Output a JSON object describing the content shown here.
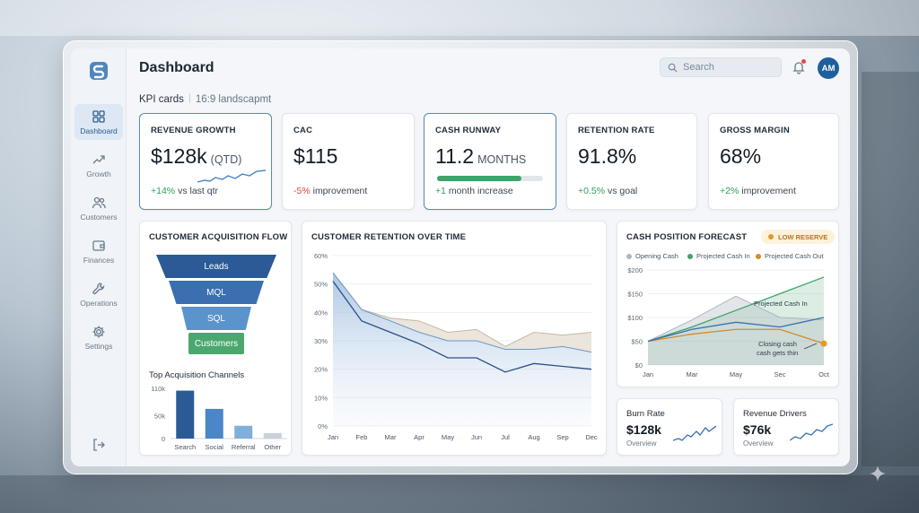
{
  "window": {
    "title": "Dashboard"
  },
  "sidebar": {
    "items": [
      {
        "label": "Dashboard",
        "icon": "grid-icon",
        "active": true
      },
      {
        "label": "Growth",
        "icon": "trend-up-icon"
      },
      {
        "label": "Customers",
        "icon": "users-icon"
      },
      {
        "label": "Finances",
        "icon": "wallet-icon"
      },
      {
        "label": "Operations",
        "icon": "wrench-icon"
      },
      {
        "label": "Settings",
        "icon": "gear-icon"
      }
    ],
    "logout_icon": "logout-icon"
  },
  "header": {
    "search_placeholder": "Search",
    "avatar_initials": "AM",
    "subtitle": "KPI cards",
    "subtitle_note": "16:9 landscapmt"
  },
  "kpis": [
    {
      "label": "REVENUE GROWTH",
      "value": "$128k",
      "unit": "(QTD)",
      "delta": "+14%",
      "delta_text": " vs last qtr",
      "tone": "pos"
    },
    {
      "label": "CAC",
      "value": "$115",
      "unit": "",
      "delta": "-5%",
      "delta_text": " improvement",
      "tone": "neg"
    },
    {
      "label": "CASH RUNWAY",
      "value": "11.2",
      "unit": "MONTHS",
      "delta": "+1",
      "delta_text": " month increase",
      "tone": "pos",
      "progress": 0.8
    },
    {
      "label": "RETENTION RATE",
      "value": "91.8%",
      "unit": "",
      "delta": "+0.5%",
      "delta_text": " vs goal",
      "tone": "pos"
    },
    {
      "label": "GROSS MARGIN",
      "value": "68%",
      "unit": "",
      "delta": "+2%",
      "delta_text": " improvement",
      "tone": "pos"
    }
  ],
  "funnel": {
    "title": "CUSTOMER ACQUISITION FLOW",
    "steps": [
      "Leads",
      "MQL",
      "SQL",
      "Customers"
    ]
  },
  "chart_data": [
    {
      "type": "bar",
      "title": "Top Acquisition Channels",
      "categories": [
        "Search",
        "Social",
        "Referral",
        "Other"
      ],
      "values": [
        105,
        65,
        28,
        12
      ],
      "y_ticks": [
        "110k",
        "50k",
        "0"
      ],
      "ylim": [
        0,
        110
      ]
    },
    {
      "type": "area",
      "title": "CUSTOMER RETENTION OVER TIME",
      "categories": [
        "Jan",
        "Feb",
        "Mar",
        "Apr",
        "May",
        "Jun",
        "Jul",
        "Aug",
        "Sep",
        "Dec"
      ],
      "y_ticks": [
        "60%",
        "50%",
        "40%",
        "30%",
        "20%",
        "10%",
        "0%"
      ],
      "ylim": [
        0,
        60
      ],
      "series": [
        {
          "values": [
            54,
            41,
            38,
            37,
            33,
            34,
            28,
            33,
            32,
            33
          ]
        },
        {
          "values": [
            54,
            41,
            37,
            33,
            30,
            30,
            27,
            27,
            28,
            26
          ]
        },
        {
          "values": [
            51,
            37,
            33,
            29,
            24,
            24,
            19,
            22,
            21,
            20
          ]
        }
      ]
    },
    {
      "type": "line",
      "title": "CASH POSITION FORECAST",
      "badge": "LOW RESERVE",
      "categories": [
        "Jan",
        "Mar",
        "May",
        "Sec",
        "Oct"
      ],
      "y_ticks": [
        "$200",
        "$150",
        "$100",
        "$50",
        "$0"
      ],
      "ylim": [
        0,
        200
      ],
      "series": [
        {
          "name": "Opening Cash",
          "color": "#aeb6c0",
          "values": [
            50,
            95,
            145,
            100,
            95
          ]
        },
        {
          "name": "Projected Cash In",
          "color": "#3fa36b",
          "values": [
            50,
            80,
            115,
            150,
            185
          ]
        },
        {
          "name": "Projected Cash Out",
          "color": "#d68a2a",
          "values": [
            50,
            65,
            75,
            75,
            45
          ]
        },
        {
          "values": [
            50,
            75,
            90,
            80,
            100
          ]
        }
      ],
      "annotations": [
        "Projected Cash In",
        "Closing cash",
        "cash gets thin"
      ]
    }
  ],
  "mini_cards": [
    {
      "title": "Burn Rate",
      "value": "$128k",
      "sub": "Overview"
    },
    {
      "title": "Revenue Drivers",
      "value": "$76k",
      "sub": "Overview"
    }
  ]
}
